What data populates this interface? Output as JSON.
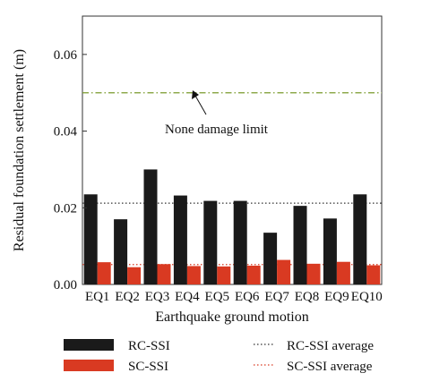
{
  "chart_data": {
    "type": "bar",
    "categories": [
      "EQ1",
      "EQ2",
      "EQ3",
      "EQ4",
      "EQ5",
      "EQ6",
      "EQ7",
      "EQ8",
      "EQ9",
      "EQ10"
    ],
    "series": [
      {
        "name": "RC-SSI",
        "color": "#1a1a1a",
        "values": [
          0.0235,
          0.017,
          0.03,
          0.0232,
          0.0218,
          0.0218,
          0.0135,
          0.0205,
          0.0172,
          0.0235
        ]
      },
      {
        "name": "SC-SSI",
        "color": "#d93a22",
        "values": [
          0.0058,
          0.0045,
          0.0053,
          0.0048,
          0.0047,
          0.0049,
          0.0064,
          0.0054,
          0.0059,
          0.005
        ]
      }
    ],
    "reference_lines": [
      {
        "name": "RC-SSI average",
        "value": 0.0212,
        "color": "#333333",
        "style": "dotted"
      },
      {
        "name": "SC-SSI average",
        "value": 0.0052,
        "color": "#d93a22",
        "style": "dotted"
      },
      {
        "name": "damage-limit",
        "value": 0.05,
        "color": "#7a9a2c",
        "style": "dash-dot"
      }
    ],
    "annotation": {
      "text": "None damage limit",
      "x_category": "EQ3",
      "y": 0.05
    },
    "xlabel": "Earthquake ground motion",
    "ylabel": "Residual foundation settlement (m)",
    "ylim": [
      0,
      0.07
    ],
    "yticks": [
      "0.00",
      "0.02",
      "0.04",
      "0.06"
    ],
    "grid": false,
    "legend_position": "bottom"
  }
}
